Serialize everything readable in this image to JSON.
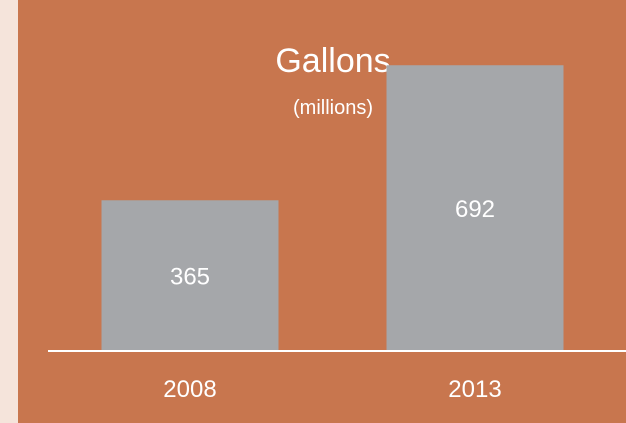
{
  "colors": {
    "page_background": "#f5e4db",
    "panel_background": "#c8764e",
    "bar": "#a5a7aa",
    "text": "#ffffff",
    "baseline": "#ffffff"
  },
  "chart_data": {
    "type": "bar",
    "title": "Gallons",
    "subtitle": "(millions)",
    "categories": [
      "2008",
      "2013"
    ],
    "values": [
      365,
      692
    ],
    "xlabel": "",
    "ylabel": "",
    "grid": false,
    "legend": "none",
    "ylim": [
      0,
      850
    ]
  }
}
